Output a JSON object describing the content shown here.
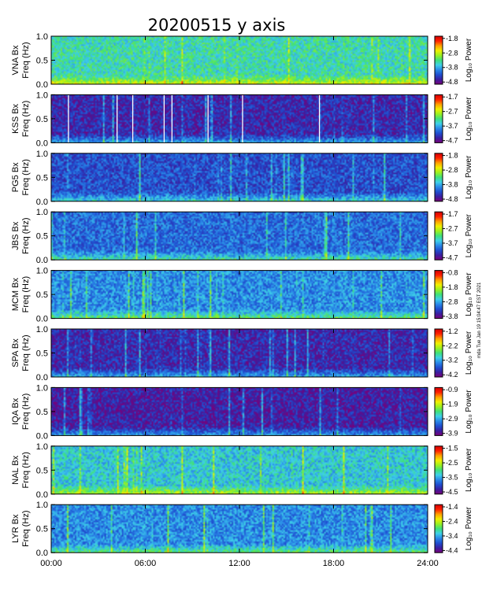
{
  "chart_data": {
    "type": "heatmap",
    "title": "20200515 y axis",
    "x_tick_labels": [
      "00:00",
      "06:00",
      "12:00",
      "18:00",
      "24:00"
    ],
    "x_ticks_hours": [
      0,
      6,
      12,
      18,
      24
    ],
    "xlim_hours": [
      0,
      24
    ],
    "ylim": [
      0.0,
      1.0
    ],
    "y_tick_labels": [
      "0.0",
      "0.5",
      "1.0"
    ],
    "y_ticks": [
      0.0,
      0.5,
      1.0
    ],
    "ylabel_line2": "Freq (Hz)",
    "colorbar_label": "Log₁₀ Power",
    "colormap": [
      "#7a007a",
      "#3a1fa0",
      "#1f4fd0",
      "#2a8ae8",
      "#3ed0e8",
      "#3ee07a",
      "#9af020",
      "#f0f000",
      "#ffa000",
      "#ff2000",
      "#d40000"
    ],
    "stamp_text": "mda Tue Jan 19 15:04:47 EST 2021",
    "panels": [
      {
        "ylabel": "VNA Bx",
        "cbar_ticks": [
          "-1.8",
          "-2.8",
          "-3.8",
          "-4.8"
        ],
        "cbar_tick_values": [
          -1.8,
          -2.8,
          -3.8,
          -4.8
        ],
        "base_level": 0.45,
        "white_lines_hours": []
      },
      {
        "ylabel": "KSS Bx",
        "cbar_ticks": [
          "-1.7",
          "-2.7",
          "-3.7",
          "-4.7"
        ],
        "cbar_tick_values": [
          -1.7,
          -2.7,
          -3.7,
          -4.7
        ],
        "base_level": 0.12,
        "white_lines_hours": [
          1.1,
          4.2,
          5.2,
          7.2,
          7.7,
          10.0,
          12.2,
          17.1
        ]
      },
      {
        "ylabel": "PG5 Bx",
        "cbar_ticks": [
          "-1.8",
          "-2.8",
          "-3.8",
          "-4.8"
        ],
        "cbar_tick_values": [
          -1.8,
          -2.8,
          -3.8,
          -4.8
        ],
        "base_level": 0.2,
        "white_lines_hours": []
      },
      {
        "ylabel": "JBS Bx",
        "cbar_ticks": [
          "-1.7",
          "-2.7",
          "-3.7",
          "-4.7"
        ],
        "cbar_tick_values": [
          -1.7,
          -2.7,
          -3.7,
          -4.7
        ],
        "base_level": 0.25,
        "white_lines_hours": []
      },
      {
        "ylabel": "MCM Bx",
        "cbar_ticks": [
          "-0.8",
          "-1.8",
          "-2.8",
          "-3.8"
        ],
        "cbar_tick_values": [
          -0.8,
          -1.8,
          -2.8,
          -3.8
        ],
        "base_level": 0.3,
        "white_lines_hours": []
      },
      {
        "ylabel": "SPA Bx",
        "cbar_ticks": [
          "-1.2",
          "-2.2",
          "-3.2",
          "-4.2"
        ],
        "cbar_tick_values": [
          -1.2,
          -2.2,
          -3.2,
          -4.2
        ],
        "base_level": 0.12,
        "white_lines_hours": []
      },
      {
        "ylabel": "IQA Bx",
        "cbar_ticks": [
          "-0.9",
          "-1.9",
          "-2.9",
          "-3.9"
        ],
        "cbar_tick_values": [
          -0.9,
          -1.9,
          -2.9,
          -3.9
        ],
        "base_level": 0.1,
        "white_lines_hours": []
      },
      {
        "ylabel": "NAL Bx",
        "cbar_ticks": [
          "-1.5",
          "-2.5",
          "-3.5",
          "-4.5"
        ],
        "cbar_tick_values": [
          -1.5,
          -2.5,
          -3.5,
          -4.5
        ],
        "base_level": 0.4,
        "white_lines_hours": []
      },
      {
        "ylabel": "LYR Bx",
        "cbar_ticks": [
          "-1.4",
          "-2.4",
          "-3.4",
          "-4.4"
        ],
        "cbar_tick_values": [
          -1.4,
          -2.4,
          -3.4,
          -4.4
        ],
        "base_level": 0.3,
        "white_lines_hours": []
      }
    ]
  }
}
